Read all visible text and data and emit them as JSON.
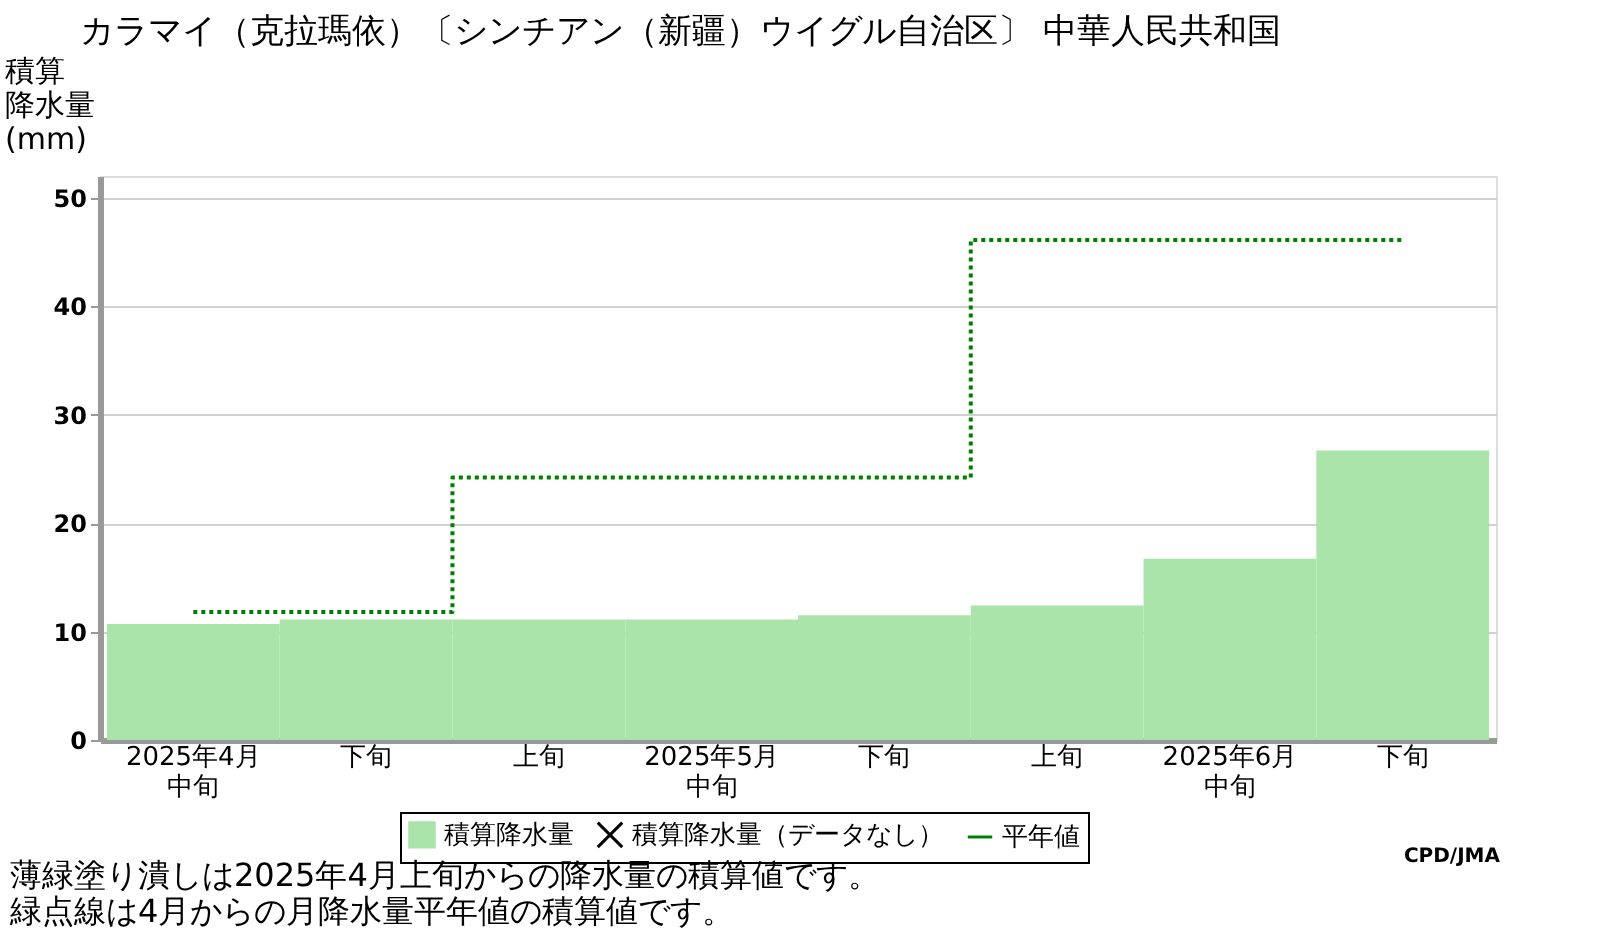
{
  "chart_data": {
    "type": "bar",
    "title": "カラマイ（克拉瑪依）〔シンチアン（新疆）ウイグル自治区〕 中華人民共和国",
    "ylabel": "積算降水量(mm)",
    "categories": [
      "2025年4月中旬",
      "下旬",
      "上旬",
      "2025年5月中旬",
      "下旬",
      "上旬",
      "2025年6月中旬",
      "下旬"
    ],
    "series": [
      {
        "name": "積算降水量",
        "color": "#aae4aa",
        "values": [
          10.7,
          11.1,
          11.1,
          11.1,
          11.5,
          12.4,
          16.7,
          26.7
        ]
      },
      {
        "name": "積算降水量（データなし）",
        "type": "scatter",
        "marker": "cross",
        "color": "#000000",
        "values": [
          null,
          null,
          null,
          null,
          null,
          null,
          null,
          null
        ]
      },
      {
        "name": "平年値",
        "type": "step",
        "line_style": "dotted",
        "color": "#008000",
        "values": [
          11.8,
          11.8,
          24.2,
          24.2,
          24.2,
          46.1,
          46.1,
          46.1
        ]
      }
    ],
    "ylim": [
      0,
      52
    ],
    "yticks": [
      0,
      10,
      20,
      30,
      40,
      50
    ],
    "grid": "y",
    "legend": "bottom",
    "annotations": [
      "薄緑塗り潰しは2025年4月上旬からの降水量の積算値です。",
      "緑点線は4月からの月降水量平年値の積算値です。",
      "CPD/JMA"
    ]
  }
}
